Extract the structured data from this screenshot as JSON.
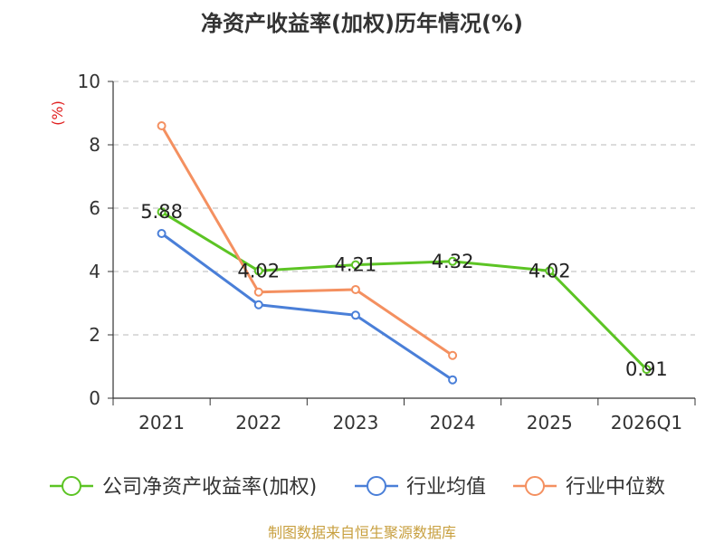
{
  "chart_data": {
    "type": "line",
    "title": "净资产收益率(加权)历年情况(%)",
    "ylabel": "(%)",
    "xlabel": "",
    "ylim": [
      0,
      10
    ],
    "yticks": [
      0,
      2,
      4,
      6,
      8,
      10
    ],
    "grid": true,
    "legend_position": "bottom",
    "categories": [
      "2021",
      "2022",
      "2023",
      "2024",
      "2025",
      "2026Q1"
    ],
    "series": [
      {
        "name": "公司净资产收益率(加权)",
        "color": "#5cc424",
        "values": [
          5.88,
          4.02,
          4.21,
          4.32,
          4.02,
          0.91
        ],
        "labels": [
          "5.88",
          "4.02",
          "4.21",
          "4.32",
          "4.02",
          "0.91"
        ],
        "show_labels": true
      },
      {
        "name": "行业均值",
        "color": "#4a7fd8",
        "values": [
          5.2,
          2.95,
          2.62,
          0.58,
          null,
          null
        ],
        "show_labels": false
      },
      {
        "name": "行业中位数",
        "color": "#f49060",
        "values": [
          8.6,
          3.35,
          3.43,
          1.35,
          null,
          null
        ],
        "show_labels": false
      }
    ]
  },
  "footer": {
    "source": "制图数据来自恒生聚源数据库"
  }
}
